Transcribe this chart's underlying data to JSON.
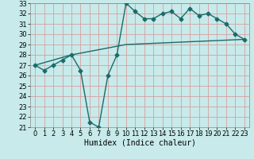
{
  "title": "",
  "xlabel": "Humidex (Indice chaleur)",
  "background_color": "#c8eaea",
  "grid_color": "#d4a0a0",
  "line_color": "#1a6b6b",
  "xlim": [
    -0.5,
    23.5
  ],
  "ylim": [
    21,
    33
  ],
  "xticks": [
    0,
    1,
    2,
    3,
    4,
    5,
    6,
    7,
    8,
    9,
    10,
    11,
    12,
    13,
    14,
    15,
    16,
    17,
    18,
    19,
    20,
    21,
    22,
    23
  ],
  "yticks": [
    21,
    22,
    23,
    24,
    25,
    26,
    27,
    28,
    29,
    30,
    31,
    32,
    33
  ],
  "line1_x": [
    0,
    1,
    2,
    3,
    4,
    5,
    6,
    7,
    8,
    9,
    10,
    11,
    12,
    13,
    14,
    15,
    16,
    17,
    18,
    19,
    20,
    21,
    22,
    23
  ],
  "line1_y": [
    27.0,
    26.5,
    27.0,
    27.5,
    28.0,
    26.5,
    21.5,
    21.0,
    26.0,
    28.0,
    33.0,
    32.2,
    31.5,
    31.5,
    32.0,
    32.2,
    31.5,
    32.5,
    31.8,
    32.0,
    31.5,
    31.0,
    30.0,
    29.5
  ],
  "line2_x": [
    0,
    4,
    10,
    23
  ],
  "line2_y": [
    27.0,
    28.0,
    29.0,
    29.5
  ],
  "marker": "D",
  "marker_size": 2.5,
  "line_width": 1.0,
  "xlabel_fontsize": 7,
  "tick_fontsize": 6
}
